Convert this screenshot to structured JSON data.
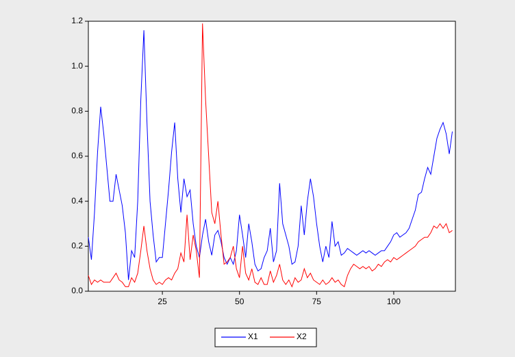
{
  "chart_data": {
    "type": "line",
    "x": [
      1,
      2,
      3,
      4,
      5,
      6,
      7,
      8,
      9,
      10,
      11,
      12,
      13,
      14,
      15,
      16,
      17,
      18,
      19,
      20,
      21,
      22,
      23,
      24,
      25,
      26,
      27,
      28,
      29,
      30,
      31,
      32,
      33,
      34,
      35,
      36,
      37,
      38,
      39,
      40,
      41,
      42,
      43,
      44,
      45,
      46,
      47,
      48,
      49,
      50,
      51,
      52,
      53,
      54,
      55,
      56,
      57,
      58,
      59,
      60,
      61,
      62,
      63,
      64,
      65,
      66,
      67,
      68,
      69,
      70,
      71,
      72,
      73,
      74,
      75,
      76,
      77,
      78,
      79,
      80,
      81,
      82,
      83,
      84,
      85,
      86,
      87,
      88,
      89,
      90,
      91,
      92,
      93,
      94,
      95,
      96,
      97,
      98,
      99,
      100,
      101,
      102,
      103,
      104,
      105,
      106,
      107,
      108,
      109,
      110,
      111,
      112,
      113,
      114,
      115,
      116,
      117,
      118,
      119
    ],
    "series": [
      {
        "name": "X1",
        "color": "#0000ff",
        "values": [
          0.24,
          0.14,
          0.35,
          0.62,
          0.82,
          0.7,
          0.55,
          0.4,
          0.4,
          0.52,
          0.45,
          0.38,
          0.26,
          0.05,
          0.18,
          0.15,
          0.4,
          0.85,
          1.16,
          0.75,
          0.4,
          0.25,
          0.13,
          0.15,
          0.15,
          0.3,
          0.45,
          0.62,
          0.75,
          0.5,
          0.35,
          0.5,
          0.42,
          0.45,
          0.3,
          0.2,
          0.15,
          0.25,
          0.32,
          0.22,
          0.16,
          0.25,
          0.27,
          0.22,
          0.15,
          0.12,
          0.15,
          0.12,
          0.18,
          0.34,
          0.25,
          0.15,
          0.3,
          0.22,
          0.12,
          0.09,
          0.1,
          0.15,
          0.18,
          0.28,
          0.13,
          0.18,
          0.48,
          0.3,
          0.25,
          0.2,
          0.12,
          0.13,
          0.2,
          0.38,
          0.25,
          0.4,
          0.5,
          0.42,
          0.3,
          0.2,
          0.13,
          0.2,
          0.15,
          0.31,
          0.2,
          0.22,
          0.16,
          0.17,
          0.19,
          0.18,
          0.17,
          0.16,
          0.17,
          0.18,
          0.17,
          0.18,
          0.17,
          0.16,
          0.17,
          0.18,
          0.18,
          0.2,
          0.22,
          0.25,
          0.26,
          0.24,
          0.25,
          0.26,
          0.28,
          0.32,
          0.36,
          0.43,
          0.44,
          0.5,
          0.55,
          0.52,
          0.6,
          0.68,
          0.72,
          0.75,
          0.7,
          0.61,
          0.71
        ]
      },
      {
        "name": "X2",
        "color": "#ff0000",
        "values": [
          0.07,
          0.03,
          0.05,
          0.04,
          0.05,
          0.04,
          0.04,
          0.04,
          0.06,
          0.08,
          0.05,
          0.04,
          0.02,
          0.02,
          0.06,
          0.04,
          0.08,
          0.18,
          0.29,
          0.18,
          0.1,
          0.05,
          0.03,
          0.04,
          0.03,
          0.05,
          0.06,
          0.05,
          0.08,
          0.1,
          0.17,
          0.13,
          0.34,
          0.14,
          0.25,
          0.18,
          0.06,
          1.19,
          0.85,
          0.6,
          0.35,
          0.3,
          0.4,
          0.25,
          0.12,
          0.13,
          0.15,
          0.2,
          0.1,
          0.06,
          0.2,
          0.08,
          0.05,
          0.1,
          0.04,
          0.03,
          0.06,
          0.03,
          0.03,
          0.09,
          0.04,
          0.07,
          0.12,
          0.05,
          0.03,
          0.05,
          0.02,
          0.06,
          0.04,
          0.05,
          0.1,
          0.06,
          0.08,
          0.05,
          0.04,
          0.03,
          0.05,
          0.03,
          0.04,
          0.06,
          0.04,
          0.05,
          0.03,
          0.02,
          0.07,
          0.1,
          0.12,
          0.11,
          0.1,
          0.11,
          0.1,
          0.11,
          0.09,
          0.1,
          0.12,
          0.11,
          0.13,
          0.14,
          0.13,
          0.15,
          0.14,
          0.15,
          0.16,
          0.17,
          0.18,
          0.19,
          0.2,
          0.22,
          0.23,
          0.24,
          0.24,
          0.26,
          0.29,
          0.28,
          0.3,
          0.28,
          0.3,
          0.26,
          0.27
        ]
      }
    ],
    "xlim": [
      1,
      120
    ],
    "xticks": [
      25,
      50,
      75,
      100
    ],
    "ylim": [
      0,
      1.2
    ],
    "yticks": [
      {
        "value": 0,
        "label": "0.0"
      },
      0.2,
      0.4,
      0.6,
      0.8,
      {
        "value": 1,
        "label": "1.0"
      },
      1.2
    ],
    "legend": "bottom"
  }
}
